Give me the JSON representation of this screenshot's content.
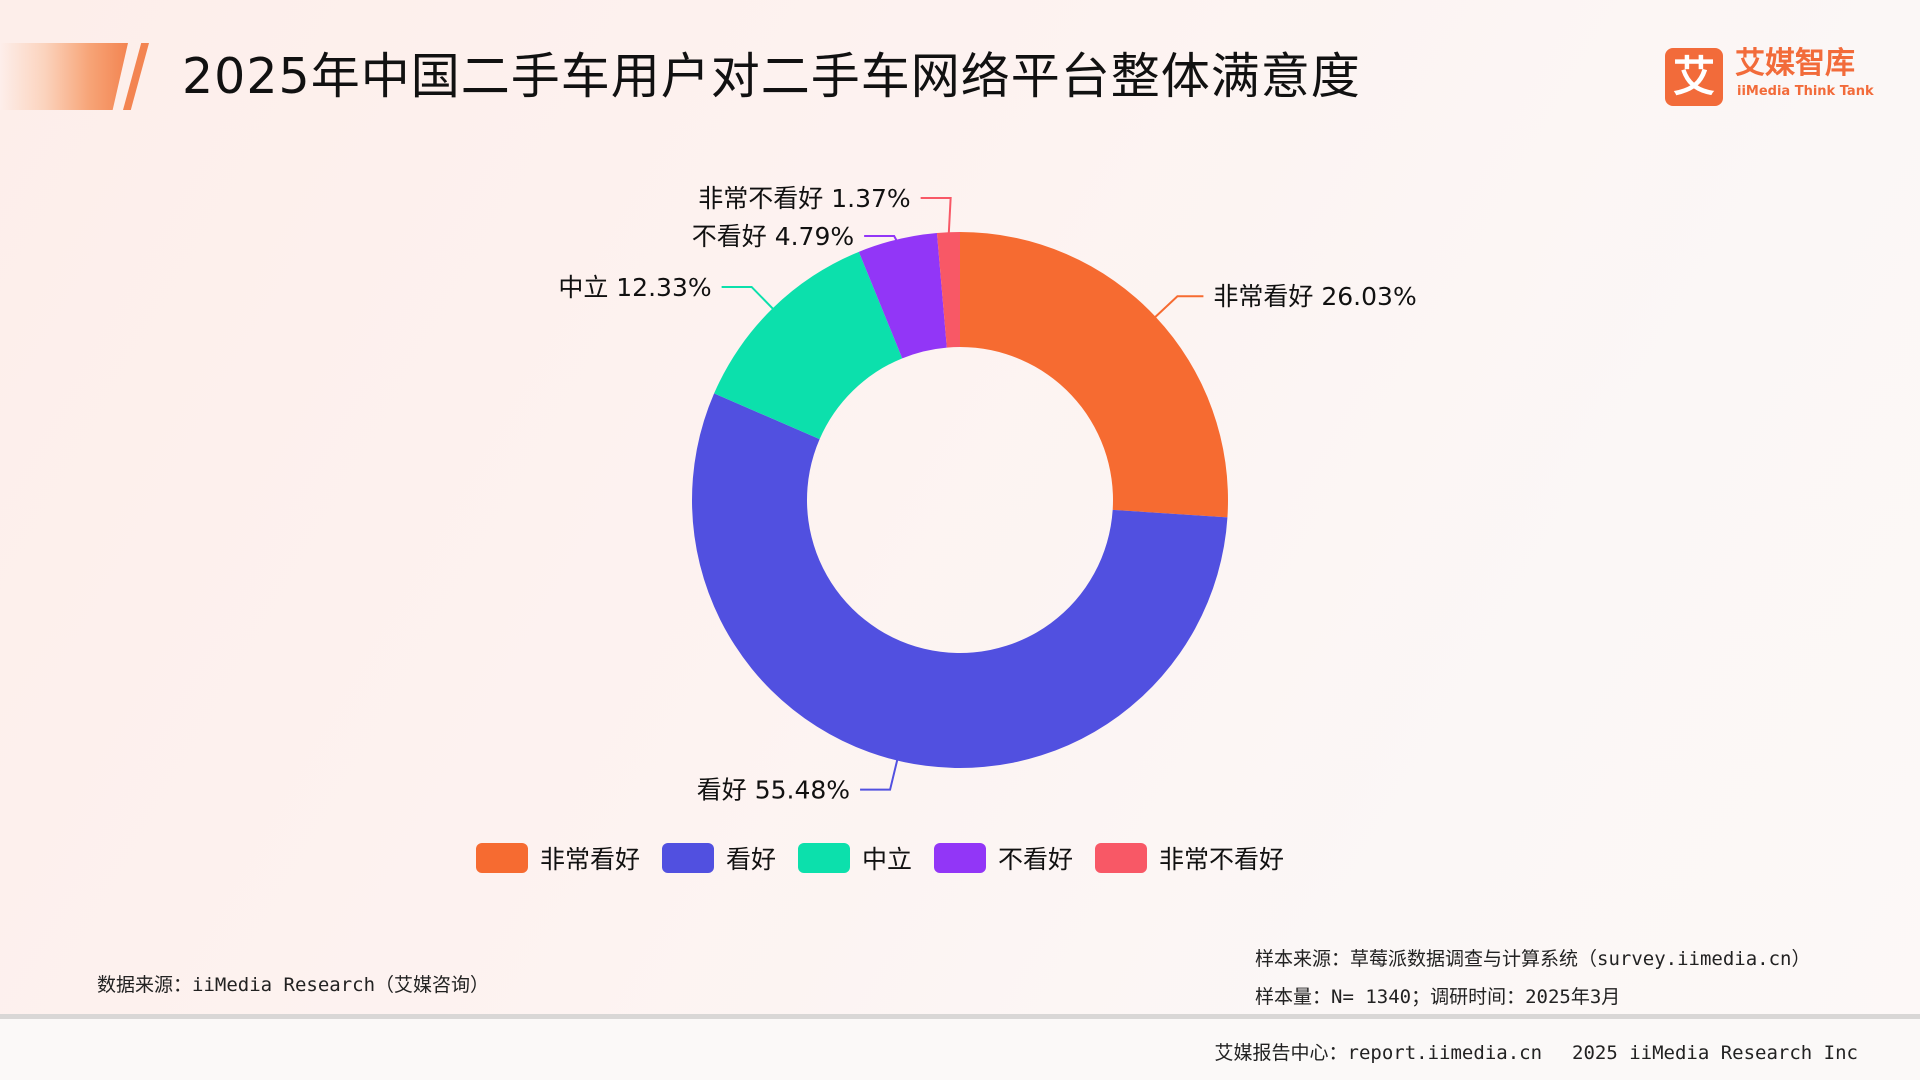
{
  "header": {
    "title": "2025年中国二手车用户对二手车网络平台整体满意度"
  },
  "logo": {
    "mark": "艾",
    "name_cn": "艾媒智库",
    "name_en": "iiMedia Think Tank"
  },
  "chart_data": {
    "type": "pie",
    "variant": "donut",
    "title": "",
    "categories": [
      "非常看好",
      "看好",
      "中立",
      "不看好",
      "非常不看好"
    ],
    "values": [
      26.03,
      55.48,
      12.33,
      4.79,
      1.37
    ],
    "value_labels": [
      "26.03%",
      "55.48%",
      "12.33%",
      "4.79%",
      "1.37%"
    ],
    "colors": [
      "#f66b31",
      "#5150e0",
      "#0ce0ac",
      "#9236f7",
      "#f85866"
    ],
    "start_angle_deg": 0,
    "direction": "clockwise",
    "legend_position": "bottom"
  },
  "footer": {
    "source": "数据来源：iiMedia Research（艾媒咨询）",
    "sample_source": "样本来源：草莓派数据调查与计算系统（survey.iimedia.cn）",
    "sample_size": "样本量：N= 1340；调研时间：2025年3月",
    "report_center": "艾媒报告中心：report.iimedia.cn",
    "copyright": "2025 iiMedia Research Inc"
  }
}
